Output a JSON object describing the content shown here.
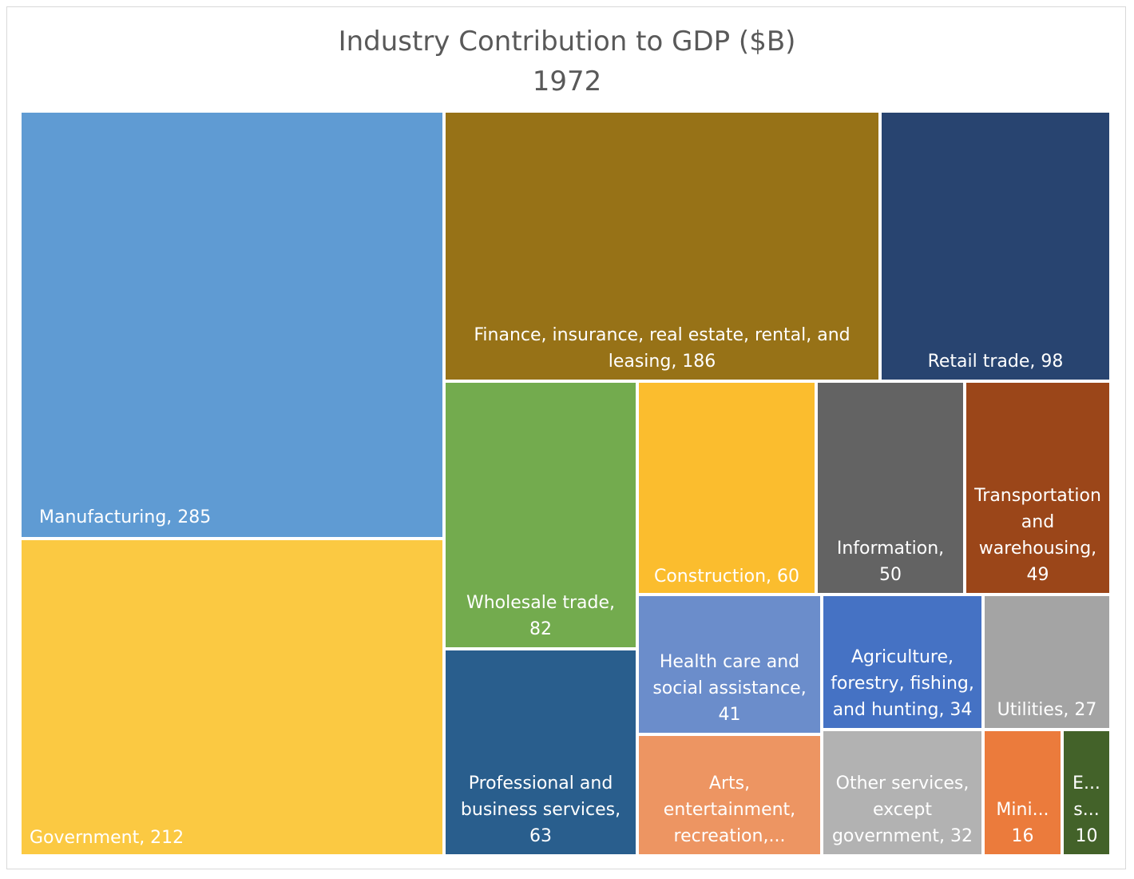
{
  "chart_data": {
    "type": "treemap",
    "title": "Industry Contribution to GDP ($B)",
    "subtitle": "1972",
    "items": [
      {
        "name": "Manufacturing",
        "value": 285,
        "label": "Manufacturing, 285",
        "color": "#5f9bd3"
      },
      {
        "name": "Government",
        "value": 212,
        "label": "Government, 212",
        "color": "#fbc942"
      },
      {
        "name": "Finance, insurance, real estate, rental, and leasing",
        "value": 186,
        "label": "Finance, insurance, real estate, rental, and\nleasing, 186",
        "color": "#977217"
      },
      {
        "name": "Retail trade",
        "value": 98,
        "label": "Retail trade, 98",
        "color": "#284470"
      },
      {
        "name": "Wholesale trade",
        "value": 82,
        "label": "Wholesale trade,\n82",
        "color": "#73ab4e"
      },
      {
        "name": "Professional and business services",
        "value": 63,
        "label": "Professional and\nbusiness services,\n63",
        "color": "#295e8d"
      },
      {
        "name": "Construction",
        "value": 60,
        "label": "Construction, 60",
        "color": "#fbbd2e"
      },
      {
        "name": "Information",
        "value": 50,
        "label": "Information,\n50",
        "color": "#636363"
      },
      {
        "name": "Transportation and warehousing",
        "value": 49,
        "label": "Transportation\nand\nwarehousing,\n49",
        "color": "#9b4619"
      },
      {
        "name": "Health care and social assistance",
        "value": 41,
        "label": "Health care and\nsocial assistance,\n41",
        "color": "#6b8dcb"
      },
      {
        "name": "Arts, entertainment, recreation",
        "value": null,
        "label": "Arts,\nentertainment,\nrecreation,...",
        "color": "#ed9562"
      },
      {
        "name": "Agriculture, forestry, fishing, and hunting",
        "value": 34,
        "label": "Agriculture,\nforestry, fishing,\nand hunting, 34",
        "color": "#4572c4"
      },
      {
        "name": "Other services, except government",
        "value": 32,
        "label": "Other services,\nexcept\ngovernment, 32",
        "color": "#b2b2b2"
      },
      {
        "name": "Utilities",
        "value": 27,
        "label": "Utilities, 27",
        "color": "#a4a4a4"
      },
      {
        "name": "Mining",
        "value": 16,
        "label": "Mini...\n16",
        "color": "#eb7b3c"
      },
      {
        "name": "Educational services",
        "value": 10,
        "label": "E...\ns...\n10",
        "color": "#436229"
      }
    ]
  }
}
